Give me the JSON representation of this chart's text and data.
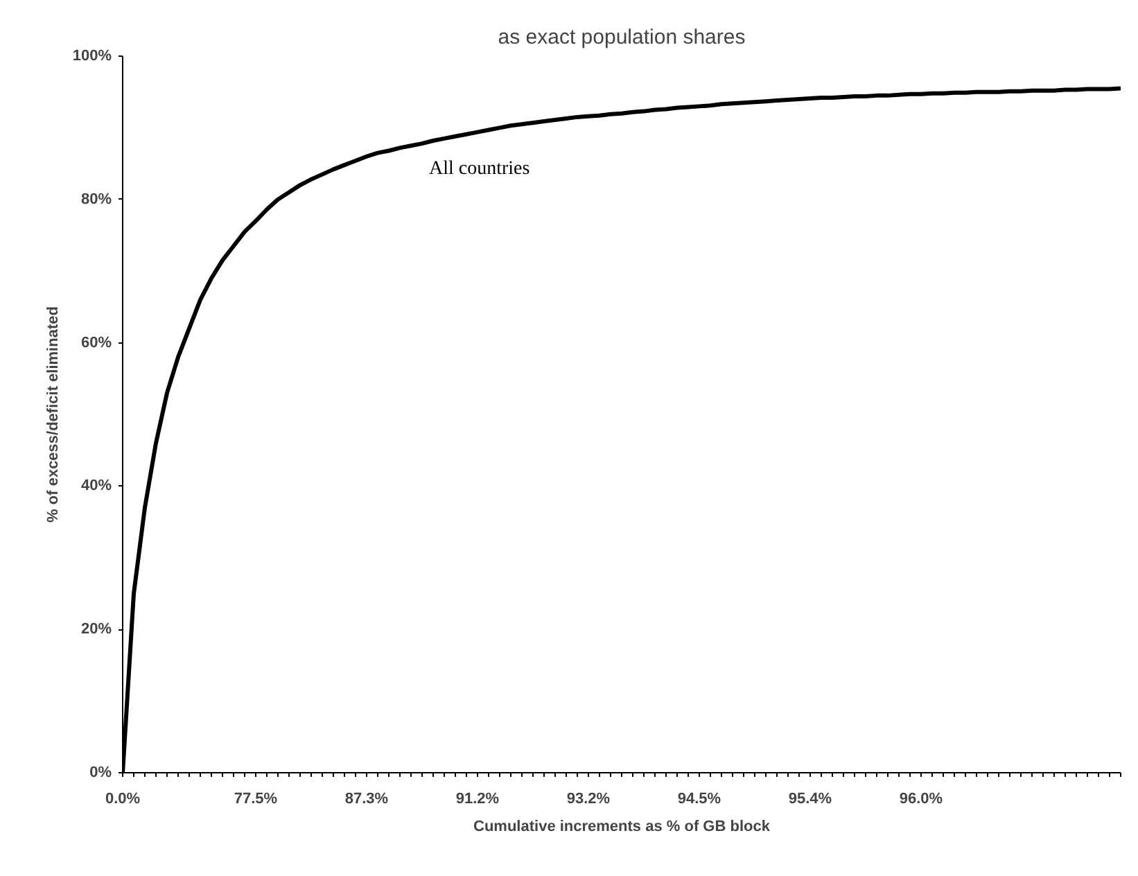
{
  "chart_data": {
    "type": "line",
    "title": "as exact population shares",
    "xlabel": "Cumulative increments as % of GB block",
    "ylabel": "% of excess/deficit eliminated",
    "categories": [
      "0.0%",
      null,
      null,
      null,
      null,
      null,
      null,
      null,
      null,
      null,
      null,
      null,
      "77.5%",
      null,
      null,
      null,
      null,
      null,
      null,
      null,
      null,
      null,
      "87.3%",
      null,
      null,
      null,
      null,
      null,
      null,
      null,
      null,
      null,
      "91.2%",
      null,
      null,
      null,
      null,
      null,
      null,
      null,
      null,
      null,
      "93.2%",
      null,
      null,
      null,
      null,
      null,
      null,
      null,
      null,
      null,
      "94.5%",
      null,
      null,
      null,
      null,
      null,
      null,
      null,
      null,
      null,
      "95.4%",
      null,
      null,
      null,
      null,
      null,
      null,
      null,
      null,
      null,
      "96.0%",
      null,
      null,
      null,
      null,
      null,
      null,
      null,
      null,
      null,
      null,
      null,
      null,
      null,
      null,
      null,
      null,
      null,
      null
    ],
    "series": [
      {
        "name": "All countries",
        "color": "#000000",
        "values": [
          0,
          25,
          37,
          46,
          53,
          58,
          62,
          66,
          69,
          71.5,
          73.5,
          75.5,
          77,
          78.6,
          80,
          81,
          82,
          82.8,
          83.5,
          84.2,
          84.8,
          85.4,
          86,
          86.5,
          86.8,
          87.2,
          87.5,
          87.8,
          88.2,
          88.5,
          88.8,
          89.1,
          89.4,
          89.7,
          90,
          90.3,
          90.5,
          90.7,
          90.9,
          91.1,
          91.3,
          91.5,
          91.6,
          91.7,
          91.9,
          92,
          92.2,
          92.3,
          92.5,
          92.6,
          92.8,
          92.9,
          93,
          93.1,
          93.3,
          93.4,
          93.5,
          93.6,
          93.7,
          93.8,
          93.9,
          94,
          94.1,
          94.2,
          94.2,
          94.3,
          94.4,
          94.4,
          94.5,
          94.5,
          94.6,
          94.7,
          94.7,
          94.8,
          94.8,
          94.9,
          94.9,
          95,
          95,
          95,
          95.1,
          95.1,
          95.2,
          95.2,
          95.2,
          95.3,
          95.3,
          95.4,
          95.4,
          95.4,
          95.5
        ]
      }
    ],
    "ylim": [
      0,
      100
    ],
    "yticks": [
      {
        "value": 0,
        "label": "0%"
      },
      {
        "value": 20,
        "label": "20%"
      },
      {
        "value": 40,
        "label": "40%"
      },
      {
        "value": 60,
        "label": "60%"
      },
      {
        "value": 80,
        "label": "80%"
      },
      {
        "value": 100,
        "label": "100%"
      }
    ],
    "grid": false,
    "marker": "none",
    "line_style": "solid"
  }
}
